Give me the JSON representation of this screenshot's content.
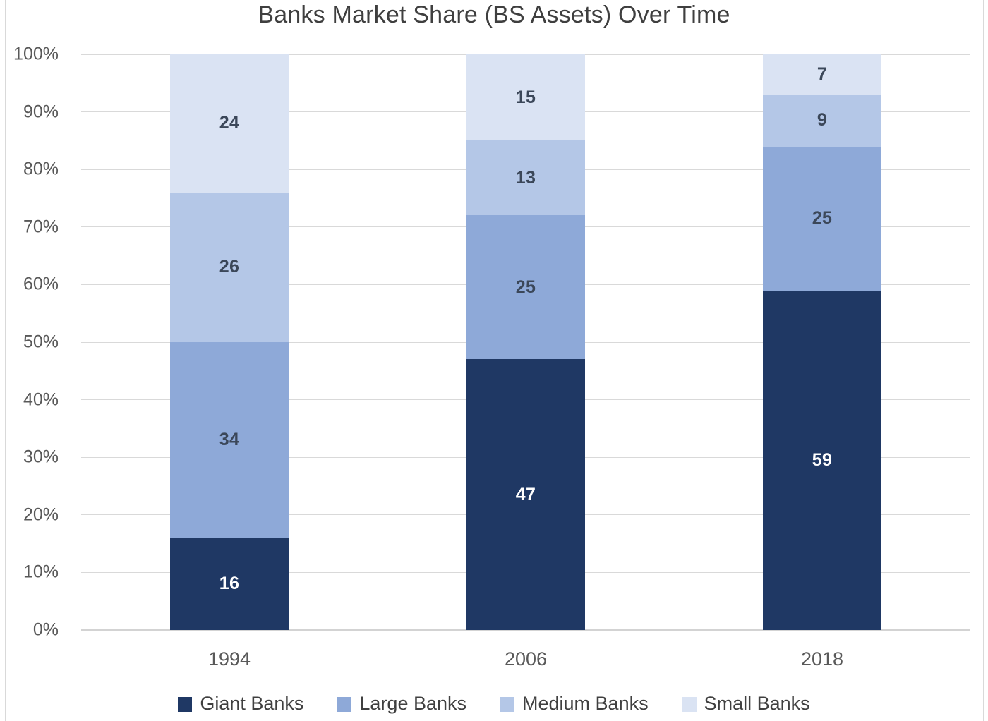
{
  "title": "Banks Market Share (BS Assets) Over Time",
  "chart_data": {
    "type": "bar",
    "stacked": true,
    "title": "Banks Market Share (BS Assets) Over Time",
    "categories": [
      "1994",
      "2006",
      "2018"
    ],
    "series": [
      {
        "name": "Giant Banks",
        "values": [
          16,
          47,
          59
        ],
        "color": "#1F3864",
        "label_color": "#FFFFFF"
      },
      {
        "name": "Large Banks",
        "values": [
          34,
          25,
          25
        ],
        "color": "#8EA9D8",
        "label_color": "#3B4759"
      },
      {
        "name": "Medium Banks",
        "values": [
          26,
          13,
          9
        ],
        "color": "#B4C7E7",
        "label_color": "#3B4759"
      },
      {
        "name": "Small Banks",
        "values": [
          24,
          15,
          7
        ],
        "color": "#DAE3F3",
        "label_color": "#3B4759"
      }
    ],
    "xlabel": "",
    "ylabel": "",
    "ylim": [
      0,
      100
    ],
    "y_ticks": [
      "0%",
      "10%",
      "20%",
      "30%",
      "40%",
      "50%",
      "60%",
      "70%",
      "80%",
      "90%",
      "100%"
    ],
    "grid": true,
    "legend_position": "bottom"
  },
  "colors": {
    "gridline": "#D9D9D9",
    "axis_text": "#595959",
    "title_text": "#3F3F3F",
    "legend_text": "#404040",
    "background": "#FFFFFF",
    "frame_border": "#D9D9D9"
  }
}
